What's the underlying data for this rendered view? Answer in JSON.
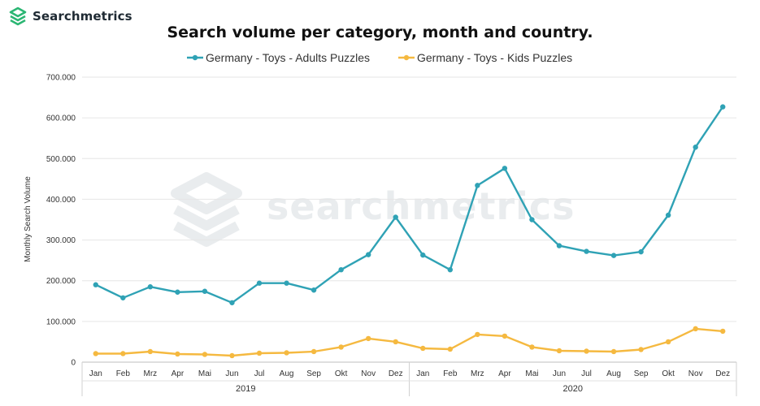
{
  "header": {
    "logo_text": "Searchmetrics",
    "watermark_text": "searchmetrics",
    "brand_color": "#2bb673"
  },
  "chart_data": {
    "type": "line",
    "title": "Search volume per category, month and country.",
    "ylabel": "Monthly Search Volume",
    "xlabel": "",
    "ylim": [
      0,
      700000
    ],
    "yticks": [
      0,
      100000,
      200000,
      300000,
      400000,
      500000,
      600000,
      700000
    ],
    "ytick_labels": [
      "0",
      "100.000",
      "200.000",
      "300.000",
      "400.000",
      "500.000",
      "600.000",
      "700.000"
    ],
    "grid": true,
    "legend_position": "top",
    "categories": [
      "Jan",
      "Feb",
      "Mrz",
      "Apr",
      "Mai",
      "Jun",
      "Jul",
      "Aug",
      "Sep",
      "Okt",
      "Nov",
      "Dez",
      "Jan",
      "Feb",
      "Mrz",
      "Apr",
      "Mai",
      "Jun",
      "Jul",
      "Aug",
      "Sep",
      "Okt",
      "Nov",
      "Dez"
    ],
    "groups": [
      {
        "label": "2019",
        "count": 12
      },
      {
        "label": "2020",
        "count": 12
      }
    ],
    "series": [
      {
        "name": "Germany - Toys - Adults Puzzles",
        "color": "#2fa2b5",
        "values": [
          190000,
          158000,
          185000,
          172000,
          174000,
          146000,
          194000,
          194000,
          177000,
          227000,
          264000,
          356000,
          263000,
          227000,
          434000,
          476000,
          350000,
          286000,
          272000,
          262000,
          271000,
          361000,
          528000,
          627000
        ]
      },
      {
        "name": "Germany - Toys - Kids Puzzles",
        "color": "#f5b940",
        "values": [
          21000,
          21000,
          26000,
          20000,
          19000,
          16000,
          22000,
          23000,
          26000,
          37000,
          58000,
          50000,
          34000,
          32000,
          68000,
          64000,
          37000,
          28000,
          27000,
          26000,
          31000,
          50000,
          82000,
          76000
        ]
      }
    ]
  }
}
